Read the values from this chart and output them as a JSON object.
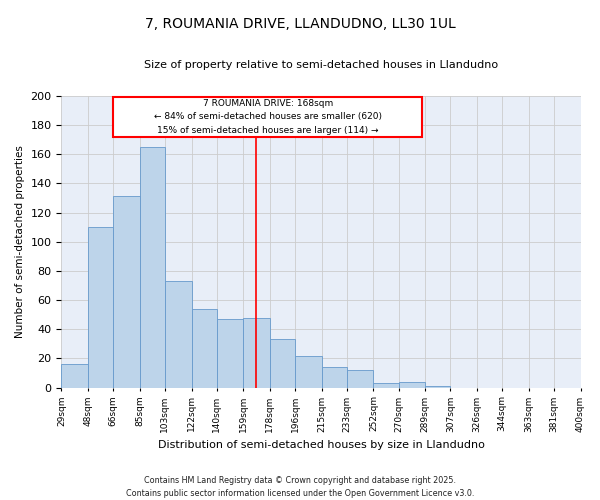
{
  "title": "7, ROUMANIA DRIVE, LLANDUDNO, LL30 1UL",
  "subtitle": "Size of property relative to semi-detached houses in Llandudno",
  "xlabel": "Distribution of semi-detached houses by size in Llandudno",
  "ylabel": "Number of semi-detached properties",
  "bar_values": [
    16,
    110,
    131,
    165,
    73,
    54,
    47,
    48,
    33,
    22,
    14,
    12,
    3,
    4,
    1,
    0,
    0,
    0,
    0,
    0
  ],
  "bin_edges": [
    29,
    48,
    66,
    85,
    103,
    122,
    140,
    159,
    178,
    196,
    215,
    233,
    252,
    270,
    289,
    307,
    326,
    344,
    363,
    381,
    400
  ],
  "tick_labels": [
    "29sqm",
    "48sqm",
    "66sqm",
    "85sqm",
    "103sqm",
    "122sqm",
    "140sqm",
    "159sqm",
    "178sqm",
    "196sqm",
    "215sqm",
    "233sqm",
    "252sqm",
    "270sqm",
    "289sqm",
    "307sqm",
    "326sqm",
    "344sqm",
    "363sqm",
    "381sqm",
    "400sqm"
  ],
  "property_size": 168,
  "bar_color": "#bdd4ea",
  "bar_edge_color": "#6699cc",
  "redline_x": 168,
  "annotation_title": "7 ROUMANIA DRIVE: 168sqm",
  "annotation_line1": "← 84% of semi-detached houses are smaller (620)",
  "annotation_line2": "15% of semi-detached houses are larger (114) →",
  "footer1": "Contains HM Land Registry data © Crown copyright and database right 2025.",
  "footer2": "Contains public sector information licensed under the Open Government Licence v3.0.",
  "bg_color": "#e8eef8",
  "ylim": [
    0,
    200
  ],
  "yticks": [
    0,
    20,
    40,
    60,
    80,
    100,
    120,
    140,
    160,
    180,
    200
  ]
}
